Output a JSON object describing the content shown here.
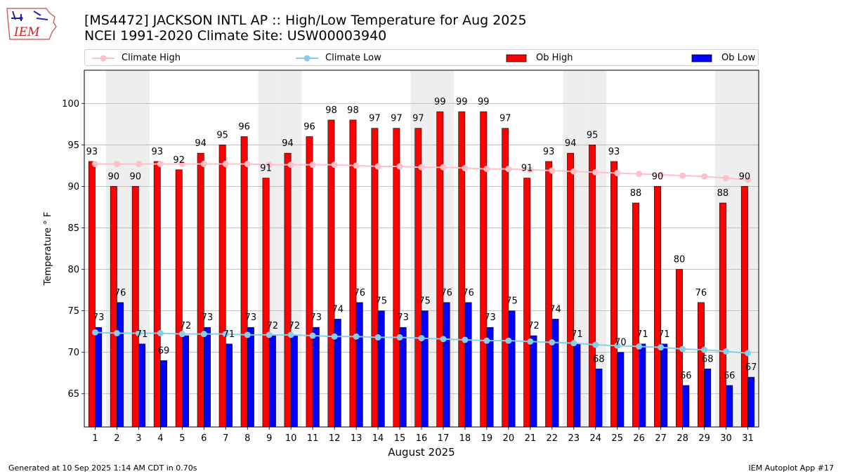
{
  "header": {
    "title_line1": "[MS4472] JACKSON INTL AP :: High/Low Temperature for Aug 2025",
    "title_line2": "NCEI 1991-2020 Climate Site: USW00003940",
    "logo_text": "IEM"
  },
  "footer": {
    "left": "Generated at 10 Sep 2025 1:14 AM CDT in 0.70s",
    "right": "IEM Autoplot App #17"
  },
  "colors": {
    "ob_high": "#ff0000",
    "ob_low": "#0000ff",
    "climate_high": "#ffc0cb",
    "climate_low": "#87ceeb",
    "weekend_shade": "#eeeeee",
    "grid": "#b0b0b0"
  },
  "legend": {
    "climate_high": "Climate High",
    "climate_low": "Climate Low",
    "ob_high": "Ob High",
    "ob_low": "Ob Low"
  },
  "chart_data": {
    "type": "bar",
    "xlabel": "August 2025",
    "ylabel": "Temperature ° F",
    "xlim": [
      0.5,
      31.5
    ],
    "ylim": [
      61,
      104
    ],
    "yticks": [
      65,
      70,
      75,
      80,
      85,
      90,
      95,
      100
    ],
    "grid": "horizontal",
    "legend_position": "top",
    "categories": [
      1,
      2,
      3,
      4,
      5,
      6,
      7,
      8,
      9,
      10,
      11,
      12,
      13,
      14,
      15,
      16,
      17,
      18,
      19,
      20,
      21,
      22,
      23,
      24,
      25,
      26,
      27,
      28,
      29,
      30,
      31
    ],
    "shaded_weekend_days": [
      2,
      3,
      9,
      10,
      16,
      17,
      23,
      24,
      30,
      31
    ],
    "series": [
      {
        "name": "Ob High",
        "kind": "bar",
        "values": [
          93,
          90,
          90,
          93,
          92,
          94,
          95,
          96,
          91,
          94,
          96,
          98,
          98,
          97,
          97,
          97,
          99,
          99,
          99,
          97,
          91,
          93,
          94,
          95,
          93,
          88,
          90,
          80,
          76,
          88,
          90
        ]
      },
      {
        "name": "Ob Low",
        "kind": "bar",
        "values": [
          73,
          76,
          71,
          69,
          72,
          73,
          71,
          73,
          72,
          72,
          73,
          74,
          76,
          75,
          73,
          75,
          76,
          76,
          73,
          75,
          72,
          74,
          71,
          68,
          70,
          71,
          71,
          66,
          68,
          66,
          67
        ]
      },
      {
        "name": "Climate High",
        "kind": "line",
        "values": [
          92.7,
          92.7,
          92.7,
          92.7,
          92.7,
          92.7,
          92.7,
          92.7,
          92.6,
          92.6,
          92.6,
          92.6,
          92.5,
          92.4,
          92.4,
          92.3,
          92.3,
          92.2,
          92.1,
          92.1,
          92.0,
          91.9,
          91.8,
          91.7,
          91.6,
          91.5,
          91.4,
          91.3,
          91.2,
          91.0,
          90.8
        ]
      },
      {
        "name": "Climate Low",
        "kind": "line",
        "values": [
          72.4,
          72.3,
          72.3,
          72.3,
          72.2,
          72.2,
          72.2,
          72.1,
          72.1,
          72.1,
          72.0,
          71.9,
          71.9,
          71.8,
          71.8,
          71.7,
          71.6,
          71.5,
          71.4,
          71.4,
          71.3,
          71.2,
          71.1,
          70.9,
          70.8,
          70.7,
          70.6,
          70.4,
          70.3,
          70.1,
          69.9
        ]
      }
    ]
  }
}
